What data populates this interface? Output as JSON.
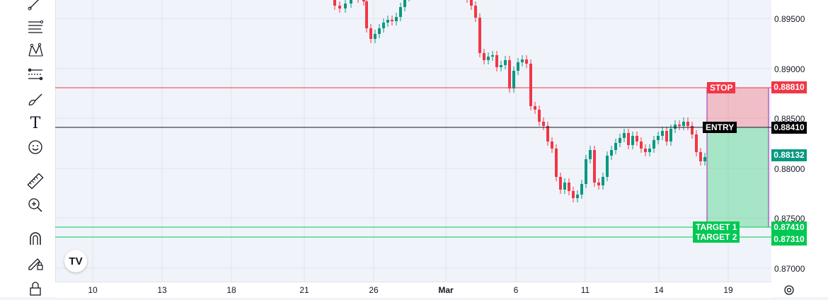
{
  "toolbar": {
    "tools": [
      {
        "name": "trendline-icon"
      },
      {
        "name": "fib-retracement-icon"
      },
      {
        "name": "pattern-icon"
      },
      {
        "name": "prediction-icon"
      },
      {
        "name": "brush-icon"
      },
      {
        "name": "text-tool-icon"
      },
      {
        "name": "emoji-icon"
      },
      {
        "name": "ruler-icon"
      },
      {
        "name": "zoom-in-icon"
      },
      {
        "name": "magnet-icon"
      },
      {
        "name": "lock-drawing-icon"
      },
      {
        "name": "lock-icon"
      }
    ],
    "text_tool_glyph": "T"
  },
  "logo": {
    "text": "TV"
  },
  "price_axis": {
    "labels": [
      "0.89500",
      "0.89000",
      "0.88500",
      "0.88000",
      "0.87500",
      "0.87000"
    ]
  },
  "time_axis": {
    "labels": [
      "10",
      "13",
      "18",
      "21",
      "26",
      "Mar",
      "6",
      "11",
      "14",
      "19"
    ]
  },
  "position": {
    "stop": {
      "label": "STOP",
      "price": "0.88810",
      "color": "#f23645"
    },
    "entry": {
      "label": "ENTRY",
      "price": "0.88410",
      "color": "#000000"
    },
    "current": {
      "price": "0.88132",
      "color": "#089981"
    },
    "target1": {
      "label": "TARGET 1",
      "price": "0.87410",
      "color": "#00c853"
    },
    "target2": {
      "label": "TARGET 2",
      "price": "0.87310",
      "color": "#00c853"
    }
  },
  "colors": {
    "up": "#089981",
    "down": "#f23645",
    "background": "#f0f3fa"
  }
}
